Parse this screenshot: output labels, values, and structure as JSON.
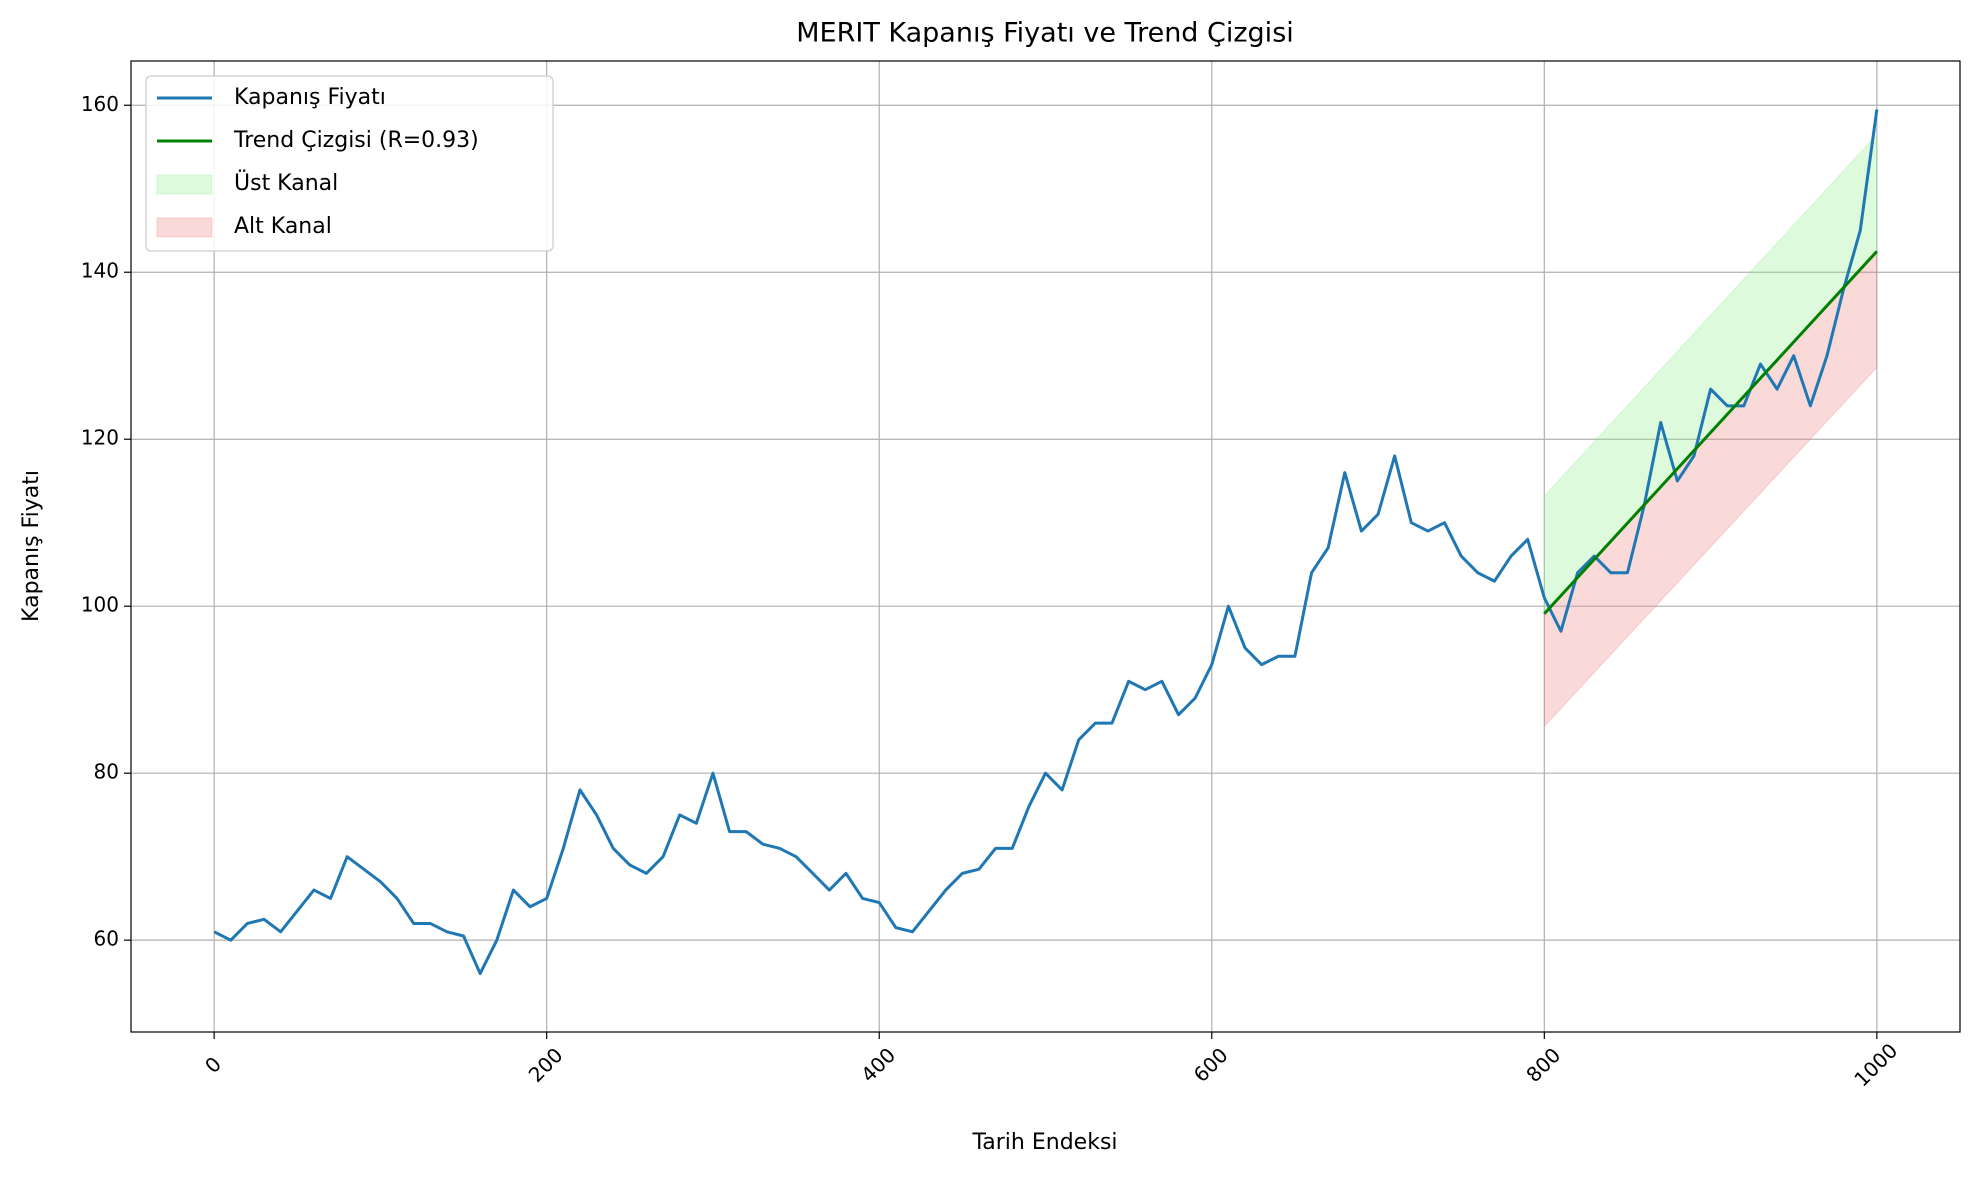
{
  "chart_data": {
    "type": "line",
    "title": "MERIT Kapanış Fiyatı ve Trend Çizgisi",
    "xlabel": "Tarih Endeksi",
    "ylabel": "Kapanış Fiyatı",
    "xlim": [
      -50,
      1050
    ],
    "xticks": [
      0,
      200,
      400,
      600,
      800,
      1000
    ],
    "ylim": [
      49,
      165.3
    ],
    "yticks": [
      60,
      80,
      100,
      120,
      140,
      160
    ],
    "grid": true,
    "legend": "upper left",
    "series": [
      {
        "name": "Kapanış Fiyatı",
        "kind": "line",
        "color": "#1f77b4",
        "x": [
          0,
          10,
          20,
          30,
          40,
          50,
          60,
          70,
          80,
          90,
          100,
          110,
          120,
          130,
          140,
          150,
          160,
          170,
          180,
          190,
          200,
          210,
          220,
          230,
          240,
          250,
          260,
          270,
          280,
          290,
          300,
          310,
          320,
          330,
          340,
          350,
          360,
          370,
          380,
          390,
          400,
          410,
          420,
          430,
          440,
          450,
          460,
          470,
          480,
          490,
          500,
          510,
          520,
          530,
          540,
          550,
          560,
          570,
          580,
          590,
          600,
          610,
          620,
          630,
          640,
          650,
          660,
          670,
          680,
          690,
          700,
          710,
          720,
          730,
          740,
          750,
          760,
          770,
          780,
          790,
          800,
          810,
          820,
          830,
          840,
          850,
          860,
          870,
          880,
          890,
          900,
          910,
          920,
          930,
          940,
          950,
          960,
          970,
          980,
          990,
          1000
        ],
        "values": [
          61,
          60,
          62,
          62.5,
          61,
          63.5,
          66,
          65,
          70,
          68.5,
          67,
          65,
          62,
          62,
          61,
          60.5,
          56,
          60,
          66,
          64,
          65,
          71,
          78,
          75,
          71,
          69,
          68,
          70,
          75,
          74,
          80,
          73,
          73,
          71.5,
          71,
          70,
          68,
          66,
          68,
          65,
          64.5,
          61.5,
          61,
          63.5,
          66,
          68,
          68.5,
          71,
          71,
          76,
          80,
          78,
          84,
          86,
          86,
          91,
          90,
          91,
          87,
          89,
          93,
          100,
          95,
          93,
          94,
          94,
          104,
          107,
          116,
          109,
          111,
          118,
          110,
          109,
          110,
          106,
          104,
          103,
          106,
          108,
          101,
          97,
          104,
          106,
          104,
          104,
          112,
          122,
          115,
          118,
          126,
          124,
          124,
          129,
          126,
          130,
          124,
          130,
          138,
          145,
          159.5
        ]
      },
      {
        "name": "Trend Çizgisi (R=0.93)",
        "kind": "line",
        "color": "#008000",
        "x": [
          800,
          1000
        ],
        "values": [
          99.1,
          142.5
        ]
      },
      {
        "name": "Üst Kanal",
        "kind": "band",
        "color": "#90ee90",
        "x": [
          800,
          1000
        ],
        "low": [
          99.1,
          142.5
        ],
        "high": [
          113.2,
          156.5
        ]
      },
      {
        "name": "Alt Kanal",
        "kind": "band",
        "color": "#f08080",
        "x": [
          800,
          1000
        ],
        "low": [
          85.6,
          128.6
        ],
        "high": [
          99.1,
          142.5
        ]
      }
    ]
  }
}
